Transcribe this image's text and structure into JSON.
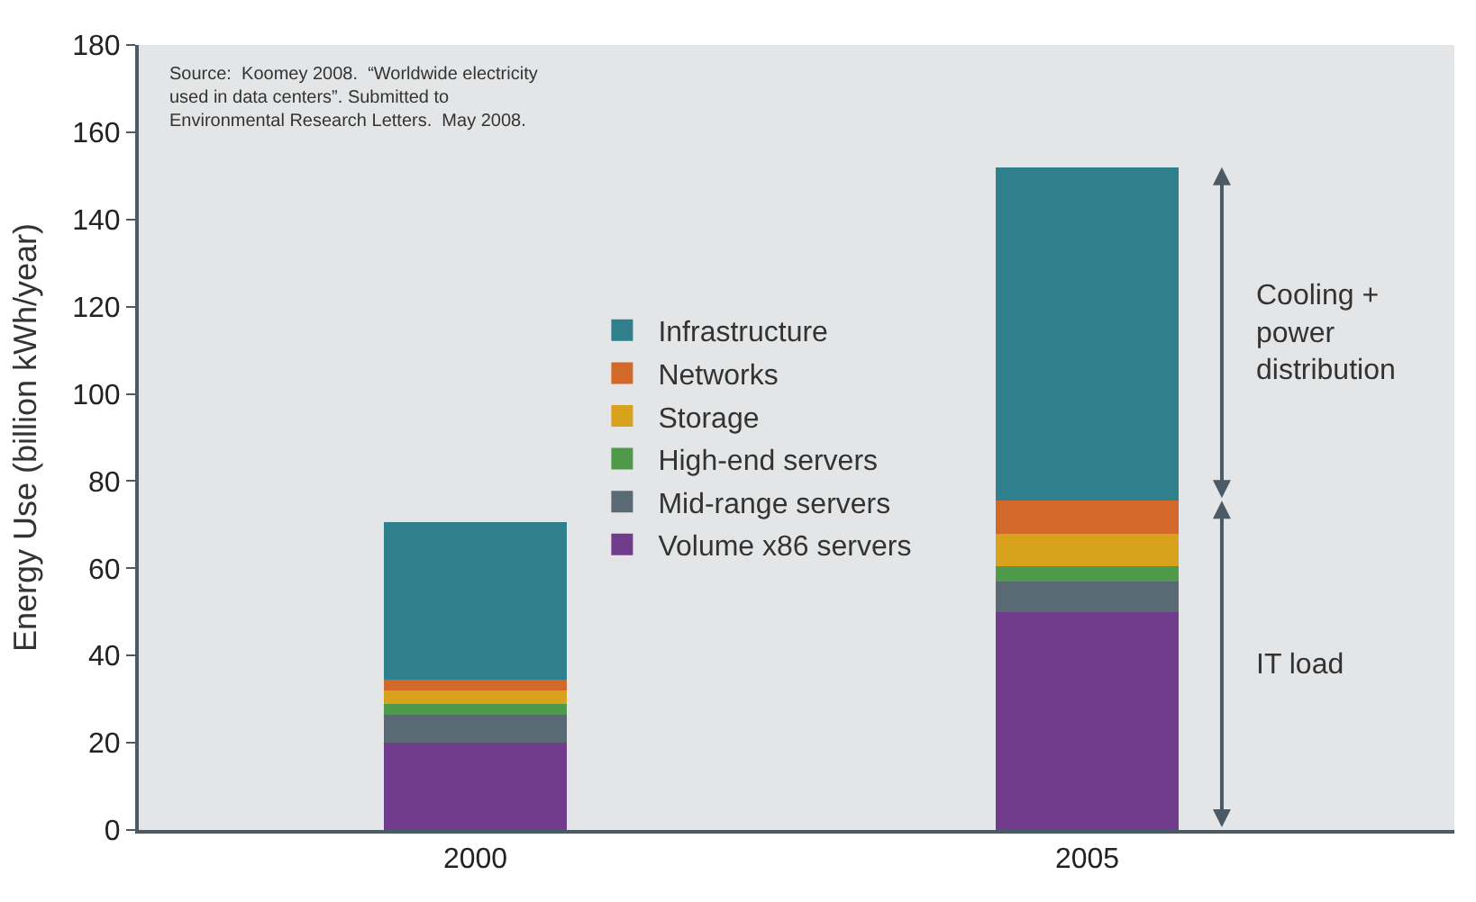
{
  "chart_data": {
    "type": "bar",
    "stacked": true,
    "ylabel": "Energy Use (billion kWh/year)",
    "categories": [
      "2000",
      "2005"
    ],
    "series": [
      {
        "name": "Volume x86 servers",
        "color": "#723c8c",
        "values": [
          20,
          50
        ]
      },
      {
        "name": "Mid-range servers",
        "color": "#5a6a74",
        "values": [
          6.5,
          7
        ]
      },
      {
        "name": "High-end servers",
        "color": "#4f9a4a",
        "values": [
          2.5,
          3.5
        ]
      },
      {
        "name": "Storage",
        "color": "#d9a21c",
        "values": [
          3,
          7.5
        ]
      },
      {
        "name": "Networks",
        "color": "#d2692a",
        "values": [
          2.5,
          7.5
        ]
      },
      {
        "name": "Infrastructure",
        "color": "#2f7f8c",
        "values": [
          36,
          76.5
        ]
      }
    ],
    "ylim": [
      0,
      180
    ],
    "yticks": [
      0,
      20,
      40,
      60,
      80,
      100,
      120,
      140,
      160,
      180
    ],
    "grid": false,
    "legend": "center",
    "annotations": [
      "Source:  Koomey 2008.  “Worldwide electricity used in data centers”. Submitted to Environmental Research Letters.  May 2008.",
      "Cooling + power distribution",
      "IT load"
    ]
  }
}
